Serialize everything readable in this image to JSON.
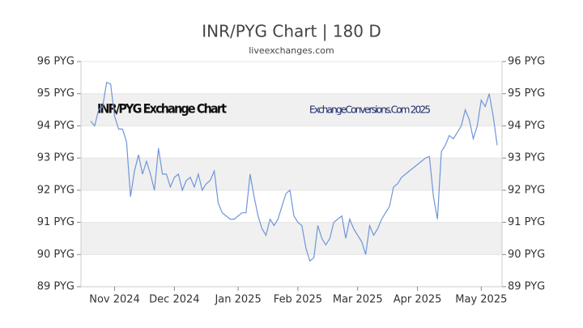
{
  "chart_data": {
    "type": "line",
    "title": "INR/PYG Chart | 180 D",
    "subtitle": "liveexchanges.com",
    "annotations": [
      "INR/PYG Exchange Chart",
      "ExchangeConversions.Com 2025"
    ],
    "categories": [
      null,
      null,
      null,
      null,
      null,
      null,
      "Nov 2024",
      null,
      null,
      null,
      null,
      null,
      null,
      null,
      null,
      null,
      null,
      null,
      null,
      null,
      null,
      "Dec 2024",
      null,
      null,
      null,
      null,
      null,
      null,
      null,
      null,
      null,
      null,
      null,
      null,
      null,
      null,
      null,
      "Jan 2025",
      null,
      null,
      null,
      null,
      null,
      null,
      null,
      null,
      null,
      null,
      null,
      null,
      null,
      null,
      "Feb 2025",
      null,
      null,
      null,
      null,
      null,
      null,
      null,
      null,
      null,
      null,
      null,
      null,
      null,
      null,
      "Mar 2025",
      null,
      null,
      null,
      null,
      null,
      null,
      null,
      null,
      null,
      null,
      null,
      null,
      null,
      null,
      "Apr 2025",
      null,
      null,
      null,
      null,
      null,
      null,
      null,
      null,
      null,
      null,
      null,
      null,
      null,
      null,
      null,
      "May 2025",
      null,
      null,
      null,
      null
    ],
    "series": [
      {
        "name": "INR/PYG",
        "color": "#6f96d8",
        "values": [
          94.15,
          94.0,
          94.5,
          94.6,
          95.35,
          95.3,
          94.3,
          93.9,
          93.9,
          93.5,
          91.8,
          92.6,
          93.1,
          92.5,
          92.9,
          92.5,
          92.0,
          93.3,
          92.5,
          92.5,
          92.1,
          92.4,
          92.5,
          92.0,
          92.3,
          92.4,
          92.1,
          92.5,
          92.0,
          92.2,
          92.3,
          92.6,
          91.6,
          91.3,
          91.2,
          91.1,
          91.1,
          91.2,
          91.3,
          91.3,
          92.5,
          91.8,
          91.2,
          90.8,
          90.6,
          91.1,
          90.9,
          91.1,
          91.5,
          91.9,
          92.0,
          91.2,
          91.0,
          90.9,
          90.2,
          89.8,
          89.9,
          90.9,
          90.5,
          90.3,
          90.5,
          91.0,
          91.1,
          91.2,
          90.5,
          91.1,
          90.8,
          90.6,
          90.4,
          90.0,
          90.9,
          90.6,
          90.8,
          91.1,
          91.3,
          91.5,
          92.1,
          92.2,
          92.4,
          92.5,
          92.6,
          92.7,
          92.8,
          92.9,
          93.0,
          93.05,
          91.8,
          91.1,
          93.2,
          93.4,
          93.7,
          93.6,
          93.8,
          94.0,
          94.5,
          94.2,
          93.6,
          94.0,
          94.8,
          94.6,
          95.0,
          94.3,
          93.4
        ]
      }
    ],
    "ylim": [
      89,
      96
    ],
    "yticks": [
      {
        "value": 89,
        "label": "89 PYG"
      },
      {
        "value": 90,
        "label": "90 PYG"
      },
      {
        "value": 91,
        "label": "91 PYG"
      },
      {
        "value": 92,
        "label": "92 PYG"
      },
      {
        "value": 93,
        "label": "93 PYG"
      },
      {
        "value": 94,
        "label": "94 PYG"
      },
      {
        "value": 95,
        "label": "95 PYG"
      },
      {
        "value": 96,
        "label": "96 PYG"
      }
    ],
    "grid": true
  }
}
